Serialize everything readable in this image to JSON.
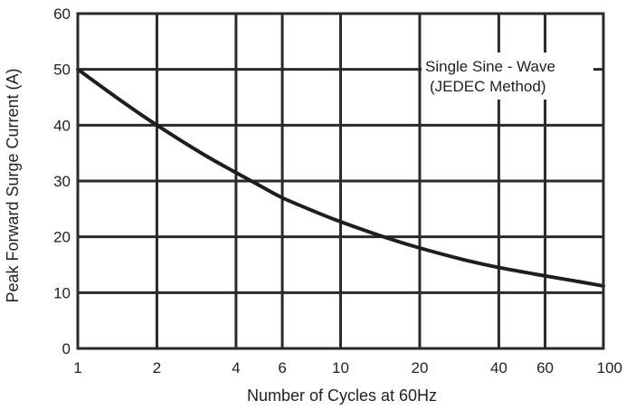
{
  "chart_data": {
    "type": "line",
    "title": "",
    "xlabel": "Number of Cycles at 60Hz",
    "ylabel": "Peak Forward Surge Current (A)",
    "xscale": "log",
    "xlim": [
      1,
      100
    ],
    "ylim": [
      0,
      60
    ],
    "grid": true,
    "xticks": [
      1,
      2,
      4,
      6,
      10,
      20,
      40,
      60,
      100
    ],
    "xtick_labels": [
      "1",
      "2",
      "4",
      "6",
      "10",
      "20",
      "40",
      "60",
      "100"
    ],
    "yticks": [
      0,
      10,
      20,
      30,
      40,
      50,
      60
    ],
    "ytick_labels": [
      "0",
      "10",
      "20",
      "30",
      "40",
      "50",
      "60"
    ],
    "annotation": [
      "Single Sine - Wave",
      "(JEDEC Method)"
    ],
    "series": [
      {
        "x": [
          1,
          1.5,
          2,
          3,
          4,
          5,
          6,
          8,
          10,
          15,
          20,
          30,
          40,
          60,
          80,
          100
        ],
        "y": [
          50,
          44,
          40,
          34.8,
          31.5,
          29,
          27,
          24.5,
          22.7,
          19.8,
          18,
          15.8,
          14.5,
          13,
          12,
          11.2
        ]
      }
    ]
  }
}
